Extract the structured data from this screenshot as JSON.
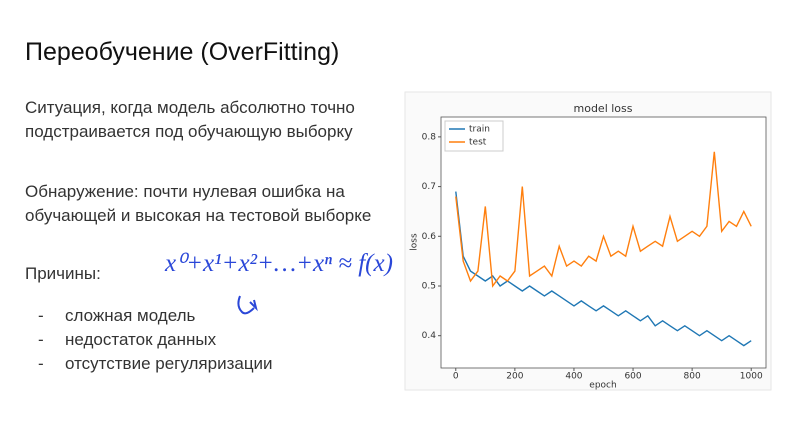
{
  "slide": {
    "title": "Переобучение (OverFitting)",
    "paragraphs": [
      "Ситуация, когда модель абсолютно точно подстраивается под обучающую выборку",
      "Обнаружение: почти нулевая ошибка на обучающей и высокая на тестовой выборке",
      "Причины:"
    ],
    "causes": [
      "сложная модель",
      "недостаток данных",
      "отсутствие регуляризации"
    ],
    "list_marker": "-",
    "annotation": "x⁰+x¹+x²+…+xⁿ ≈ f(x)"
  },
  "chart_data": {
    "type": "line",
    "title": "model loss",
    "xlabel": "epoch",
    "ylabel": "loss",
    "x": [
      0,
      25,
      50,
      75,
      100,
      125,
      150,
      175,
      200,
      225,
      250,
      275,
      300,
      325,
      350,
      375,
      400,
      425,
      450,
      475,
      500,
      525,
      550,
      575,
      600,
      625,
      650,
      675,
      700,
      725,
      750,
      775,
      800,
      825,
      850,
      875,
      900,
      925,
      950,
      975,
      1000
    ],
    "series": [
      {
        "name": "train",
        "color": "#1f77b4",
        "values": [
          0.69,
          0.56,
          0.53,
          0.52,
          0.51,
          0.52,
          0.5,
          0.51,
          0.5,
          0.49,
          0.5,
          0.49,
          0.48,
          0.49,
          0.48,
          0.47,
          0.46,
          0.47,
          0.46,
          0.45,
          0.46,
          0.45,
          0.44,
          0.45,
          0.44,
          0.43,
          0.44,
          0.42,
          0.43,
          0.42,
          0.41,
          0.42,
          0.41,
          0.4,
          0.41,
          0.4,
          0.39,
          0.4,
          0.39,
          0.38,
          0.39
        ]
      },
      {
        "name": "test",
        "color": "#ff7f0e",
        "values": [
          0.68,
          0.55,
          0.51,
          0.53,
          0.66,
          0.5,
          0.52,
          0.51,
          0.53,
          0.7,
          0.52,
          0.53,
          0.54,
          0.52,
          0.58,
          0.54,
          0.55,
          0.54,
          0.56,
          0.55,
          0.6,
          0.56,
          0.57,
          0.56,
          0.62,
          0.57,
          0.58,
          0.59,
          0.58,
          0.64,
          0.59,
          0.6,
          0.61,
          0.6,
          0.62,
          0.77,
          0.61,
          0.63,
          0.62,
          0.65,
          0.62
        ]
      }
    ],
    "xlim": [
      -50,
      1050
    ],
    "ylim": [
      0.335,
      0.84
    ],
    "xticks": [
      0,
      200,
      400,
      600,
      800,
      1000
    ],
    "yticks": [
      0.4,
      0.5,
      0.6,
      0.7,
      0.8
    ],
    "grid": false,
    "legend": "upper left"
  }
}
